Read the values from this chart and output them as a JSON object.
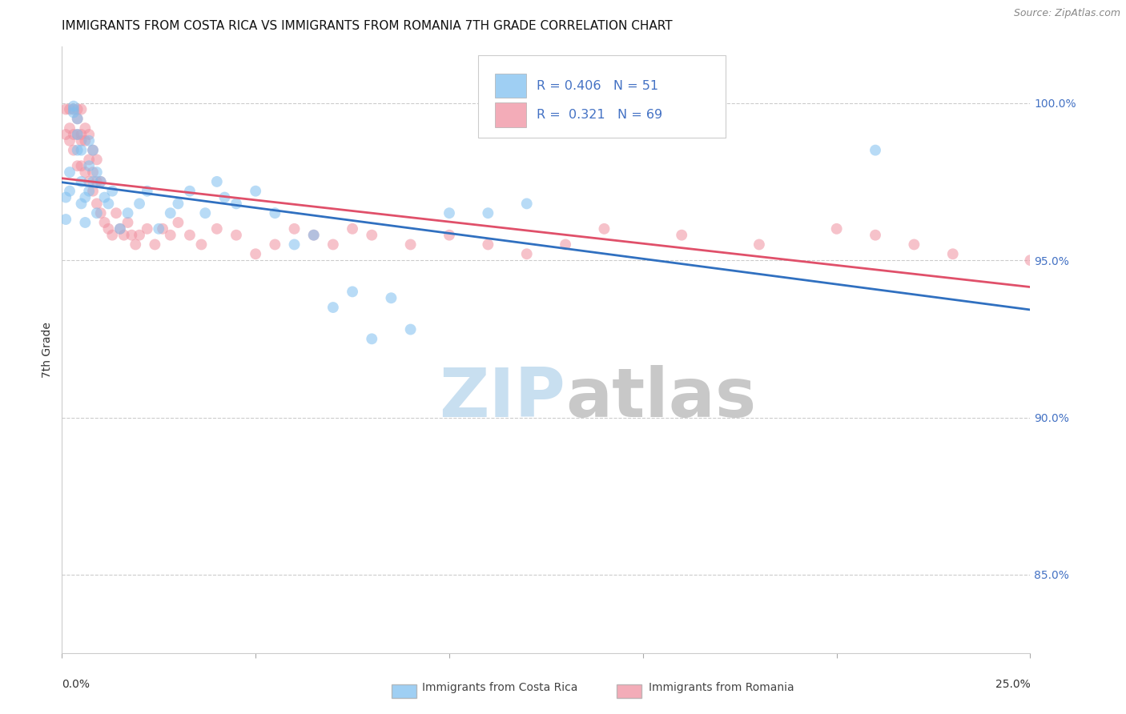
{
  "title": "IMMIGRANTS FROM COSTA RICA VS IMMIGRANTS FROM ROMANIA 7TH GRADE CORRELATION CHART",
  "source": "Source: ZipAtlas.com",
  "ylabel": "7th Grade",
  "ytick_labels": [
    "100.0%",
    "95.0%",
    "90.0%",
    "85.0%"
  ],
  "ytick_values": [
    1.0,
    0.95,
    0.9,
    0.85
  ],
  "xlim": [
    0.0,
    0.25
  ],
  "ylim": [
    0.825,
    1.018
  ],
  "legend_costa_rica": "Immigrants from Costa Rica",
  "legend_romania": "Immigrants from Romania",
  "R_costa_rica": 0.406,
  "N_costa_rica": 51,
  "R_romania": 0.321,
  "N_romania": 69,
  "color_costa_rica": "#7fbfef",
  "color_romania": "#f090a0",
  "line_color_costa_rica": "#3070c0",
  "line_color_romania": "#e0506a",
  "marker_size": 100,
  "costa_rica_x": [
    0.001,
    0.001,
    0.002,
    0.002,
    0.003,
    0.003,
    0.003,
    0.004,
    0.004,
    0.004,
    0.005,
    0.005,
    0.005,
    0.006,
    0.006,
    0.007,
    0.007,
    0.007,
    0.008,
    0.008,
    0.009,
    0.009,
    0.01,
    0.011,
    0.012,
    0.013,
    0.015,
    0.017,
    0.02,
    0.022,
    0.025,
    0.028,
    0.03,
    0.033,
    0.037,
    0.04,
    0.042,
    0.045,
    0.05,
    0.055,
    0.06,
    0.065,
    0.07,
    0.075,
    0.08,
    0.085,
    0.09,
    0.1,
    0.11,
    0.12,
    0.21
  ],
  "costa_rica_y": [
    0.97,
    0.963,
    0.972,
    0.978,
    0.997,
    0.998,
    0.999,
    0.985,
    0.99,
    0.995,
    0.968,
    0.975,
    0.985,
    0.962,
    0.97,
    0.972,
    0.98,
    0.988,
    0.975,
    0.985,
    0.965,
    0.978,
    0.975,
    0.97,
    0.968,
    0.972,
    0.96,
    0.965,
    0.968,
    0.972,
    0.96,
    0.965,
    0.968,
    0.972,
    0.965,
    0.975,
    0.97,
    0.968,
    0.972,
    0.965,
    0.955,
    0.958,
    0.935,
    0.94,
    0.925,
    0.938,
    0.928,
    0.965,
    0.965,
    0.968,
    0.985
  ],
  "romania_x": [
    0.001,
    0.001,
    0.002,
    0.002,
    0.002,
    0.003,
    0.003,
    0.003,
    0.004,
    0.004,
    0.004,
    0.004,
    0.005,
    0.005,
    0.005,
    0.005,
    0.006,
    0.006,
    0.006,
    0.007,
    0.007,
    0.007,
    0.008,
    0.008,
    0.008,
    0.009,
    0.009,
    0.009,
    0.01,
    0.01,
    0.011,
    0.012,
    0.013,
    0.014,
    0.015,
    0.016,
    0.017,
    0.018,
    0.019,
    0.02,
    0.022,
    0.024,
    0.026,
    0.028,
    0.03,
    0.033,
    0.036,
    0.04,
    0.045,
    0.05,
    0.055,
    0.06,
    0.065,
    0.07,
    0.075,
    0.08,
    0.09,
    0.1,
    0.11,
    0.12,
    0.13,
    0.14,
    0.16,
    0.18,
    0.2,
    0.21,
    0.22,
    0.23,
    0.25
  ],
  "romania_y": [
    0.99,
    0.998,
    0.988,
    0.992,
    0.998,
    0.985,
    0.99,
    0.998,
    0.98,
    0.99,
    0.995,
    0.998,
    0.98,
    0.988,
    0.99,
    0.998,
    0.978,
    0.988,
    0.992,
    0.975,
    0.982,
    0.99,
    0.972,
    0.978,
    0.985,
    0.968,
    0.975,
    0.982,
    0.965,
    0.975,
    0.962,
    0.96,
    0.958,
    0.965,
    0.96,
    0.958,
    0.962,
    0.958,
    0.955,
    0.958,
    0.96,
    0.955,
    0.96,
    0.958,
    0.962,
    0.958,
    0.955,
    0.96,
    0.958,
    0.952,
    0.955,
    0.96,
    0.958,
    0.955,
    0.96,
    0.958,
    0.955,
    0.958,
    0.955,
    0.952,
    0.955,
    0.96,
    0.958,
    0.955,
    0.96,
    0.958,
    0.955,
    0.952,
    0.95
  ],
  "background_color": "#ffffff",
  "grid_color": "#cccccc",
  "title_color": "#111111",
  "title_fontsize": 11,
  "watermark_zip_color": "#c8dff0",
  "watermark_atlas_color": "#c8c8c8"
}
